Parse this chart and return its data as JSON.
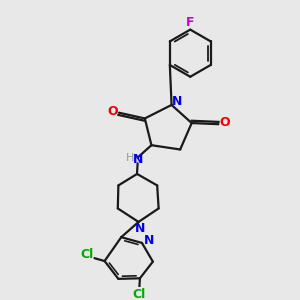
{
  "background_color": "#e8e8e8",
  "bond_color": "#1a1a1a",
  "N_color": "#0000ee",
  "O_color": "#ee0000",
  "F_color": "#cc00cc",
  "Cl_color": "#00aa00",
  "H_color": "#999999",
  "figsize": [
    3.0,
    3.0
  ],
  "dpi": 100,
  "xlim": [
    0,
    10
  ],
  "ylim": [
    0,
    10
  ]
}
